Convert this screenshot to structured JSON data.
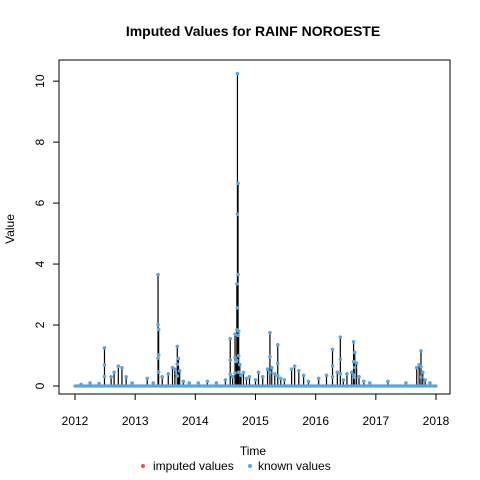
{
  "chart_data": {
    "type": "line",
    "title": "Imputed Values for  RAINF NOROESTE",
    "xlabel": "Time",
    "ylabel": "Value",
    "xlim": [
      2012.0,
      2018.0
    ],
    "ylim": [
      0,
      10.3
    ],
    "x_ticks": [
      2012,
      2013,
      2014,
      2015,
      2016,
      2017,
      2018
    ],
    "y_ticks": [
      0,
      2,
      4,
      6,
      8,
      10
    ],
    "grid": false,
    "legend_position": "bottom",
    "series": [
      {
        "name": "known values",
        "color": "#5da5da",
        "spikes": [
          [
            2012.1,
            0.05
          ],
          [
            2012.25,
            0.1
          ],
          [
            2012.4,
            0.08
          ],
          [
            2012.49,
            1.25
          ],
          [
            2012.6,
            0.3
          ],
          [
            2012.65,
            0.45
          ],
          [
            2012.72,
            0.65
          ],
          [
            2012.78,
            0.6
          ],
          [
            2012.85,
            0.3
          ],
          [
            2012.95,
            0.1
          ],
          [
            2013.2,
            0.25
          ],
          [
            2013.3,
            0.1
          ],
          [
            2013.38,
            3.65
          ],
          [
            2013.39,
            1.85
          ],
          [
            2013.45,
            0.3
          ],
          [
            2013.55,
            0.4
          ],
          [
            2013.62,
            0.6
          ],
          [
            2013.66,
            0.55
          ],
          [
            2013.7,
            1.3
          ],
          [
            2013.72,
            0.9
          ],
          [
            2013.74,
            0.5
          ],
          [
            2013.8,
            0.15
          ],
          [
            2013.9,
            0.1
          ],
          [
            2014.05,
            0.1
          ],
          [
            2014.2,
            0.15
          ],
          [
            2014.35,
            0.1
          ],
          [
            2014.5,
            0.2
          ],
          [
            2014.58,
            1.55
          ],
          [
            2014.62,
            0.3
          ],
          [
            2014.66,
            1.7
          ],
          [
            2014.68,
            0.8
          ],
          [
            2014.69,
            3.35
          ],
          [
            2014.7,
            10.25
          ],
          [
            2014.71,
            6.65
          ],
          [
            2014.72,
            1.8
          ],
          [
            2014.74,
            0.7
          ],
          [
            2014.76,
            0.35
          ],
          [
            2014.8,
            0.45
          ],
          [
            2014.85,
            0.25
          ],
          [
            2014.9,
            0.3
          ],
          [
            2015.0,
            0.2
          ],
          [
            2015.05,
            0.45
          ],
          [
            2015.12,
            0.3
          ],
          [
            2015.2,
            0.55
          ],
          [
            2015.24,
            1.75
          ],
          [
            2015.27,
            0.6
          ],
          [
            2015.32,
            0.4
          ],
          [
            2015.37,
            1.35
          ],
          [
            2015.42,
            0.25
          ],
          [
            2015.48,
            0.2
          ],
          [
            2015.6,
            0.55
          ],
          [
            2015.65,
            0.65
          ],
          [
            2015.72,
            0.5
          ],
          [
            2015.8,
            0.35
          ],
          [
            2015.88,
            0.15
          ],
          [
            2016.05,
            0.25
          ],
          [
            2016.18,
            0.35
          ],
          [
            2016.28,
            1.2
          ],
          [
            2016.36,
            0.45
          ],
          [
            2016.41,
            1.6
          ],
          [
            2016.46,
            0.2
          ],
          [
            2016.52,
            0.4
          ],
          [
            2016.6,
            0.45
          ],
          [
            2016.63,
            1.45
          ],
          [
            2016.65,
            1.1
          ],
          [
            2016.68,
            0.75
          ],
          [
            2016.72,
            0.3
          ],
          [
            2016.8,
            0.15
          ],
          [
            2016.9,
            0.1
          ],
          [
            2017.2,
            0.15
          ],
          [
            2017.5,
            0.1
          ],
          [
            2017.68,
            0.6
          ],
          [
            2017.72,
            0.7
          ],
          [
            2017.75,
            1.15
          ],
          [
            2017.78,
            0.45
          ],
          [
            2017.82,
            0.2
          ],
          [
            2017.9,
            0.1
          ]
        ]
      },
      {
        "name": "imputed values",
        "color": "#ef5350",
        "spikes": []
      }
    ]
  }
}
